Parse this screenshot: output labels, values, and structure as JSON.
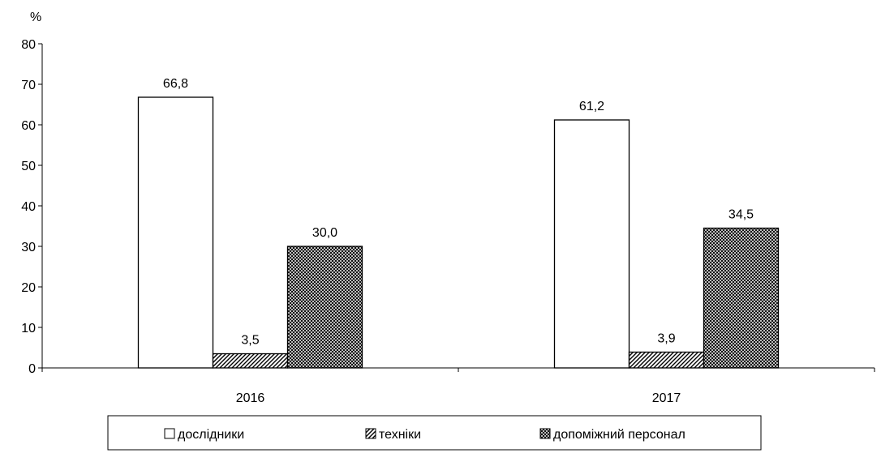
{
  "chart_data": {
    "type": "bar",
    "title": "",
    "xlabel": "",
    "ylabel": "%",
    "ylim": [
      0,
      80
    ],
    "yticks": [
      0,
      10,
      20,
      30,
      40,
      50,
      60,
      70,
      80
    ],
    "categories": [
      "2016",
      "2017"
    ],
    "series": [
      {
        "name": "дослідники",
        "values": [
          66.8,
          61.2
        ],
        "labels": [
          "66,8",
          "61,2"
        ],
        "fill": "white"
      },
      {
        "name": "техніки",
        "values": [
          3.5,
          3.9
        ],
        "labels": [
          "3,5",
          "3,9"
        ],
        "fill": "diagonal-hatch"
      },
      {
        "name": "допоміжний персонал",
        "values": [
          30.0,
          34.5
        ],
        "labels": [
          "30,0",
          "34,5"
        ],
        "fill": "dense-crosshatch"
      }
    ],
    "grid": false,
    "legend_position": "bottom"
  }
}
